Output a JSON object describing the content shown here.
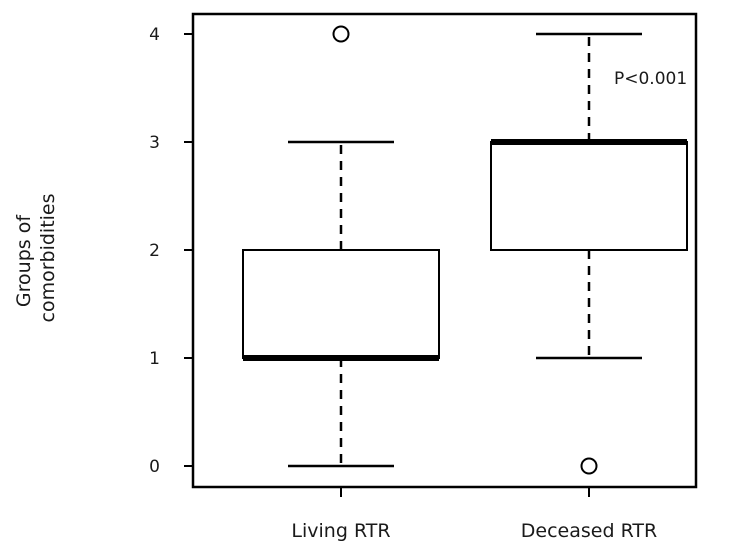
{
  "chart_data": {
    "type": "boxplot",
    "title": "",
    "xlabel": "",
    "ylabel_lines": [
      "Groups of",
      "comorbidities"
    ],
    "ylim": [
      0,
      4
    ],
    "yticks": [
      0,
      1,
      2,
      3,
      4
    ],
    "ytick_labels": [
      "0",
      "1",
      "2",
      "3",
      "4"
    ],
    "categories": [
      "Living RTR",
      "Deceased RTR"
    ],
    "boxes": [
      {
        "category": "Living RTR",
        "whisker_low": 0,
        "q1": 1,
        "median": 1,
        "q3": 2,
        "whisker_high": 3,
        "outliers": [
          4
        ]
      },
      {
        "category": "Deceased RTR",
        "whisker_low": 1,
        "q1": 2,
        "median": 3,
        "q3": 3,
        "whisker_high": 4,
        "outliers": [
          0
        ]
      }
    ],
    "annotation": "P<0.001",
    "grid": false,
    "colors": {
      "stroke": "#000000",
      "box_fill": "#ffffff",
      "text": "#1a1a1a"
    }
  }
}
